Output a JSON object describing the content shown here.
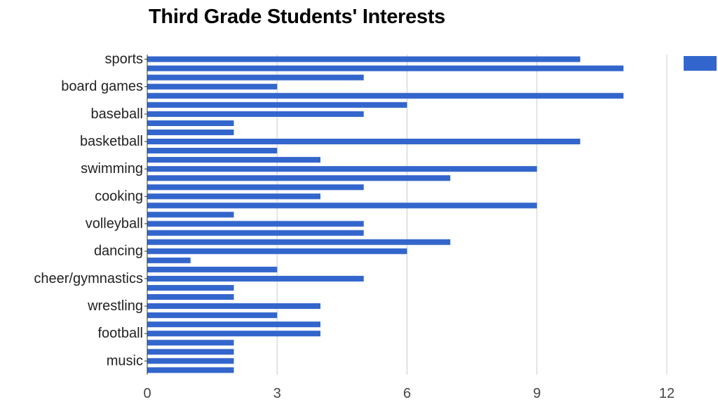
{
  "chart_data": {
    "type": "bar",
    "orientation": "horizontal",
    "title": "Third Grade Students' Interests",
    "xlabel": "",
    "ylabel": "",
    "xlim": [
      0,
      12
    ],
    "x_ticks": [
      0,
      3,
      6,
      9,
      12
    ],
    "grid": true,
    "legend": {
      "position": "top-right",
      "entries": [
        ""
      ]
    },
    "bar_color": "#3366cc",
    "categories": [
      "sports",
      "",
      "",
      "board games",
      "",
      "",
      "baseball",
      "",
      "",
      "basketball",
      "",
      "",
      "swimming",
      "",
      "",
      "cooking",
      "",
      "",
      "volleyball",
      "",
      "",
      "dancing",
      "",
      "",
      "cheer/gymnastics",
      "",
      "",
      "wrestling",
      "",
      "",
      "football",
      "",
      "",
      "music",
      ""
    ],
    "values": [
      10,
      11,
      5,
      3,
      11,
      6,
      5,
      2,
      2,
      10,
      3,
      4,
      9,
      7,
      5,
      4,
      9,
      2,
      5,
      5,
      7,
      6,
      1,
      3,
      5,
      2,
      2,
      4,
      3,
      4,
      4,
      2,
      2,
      2,
      2
    ]
  }
}
